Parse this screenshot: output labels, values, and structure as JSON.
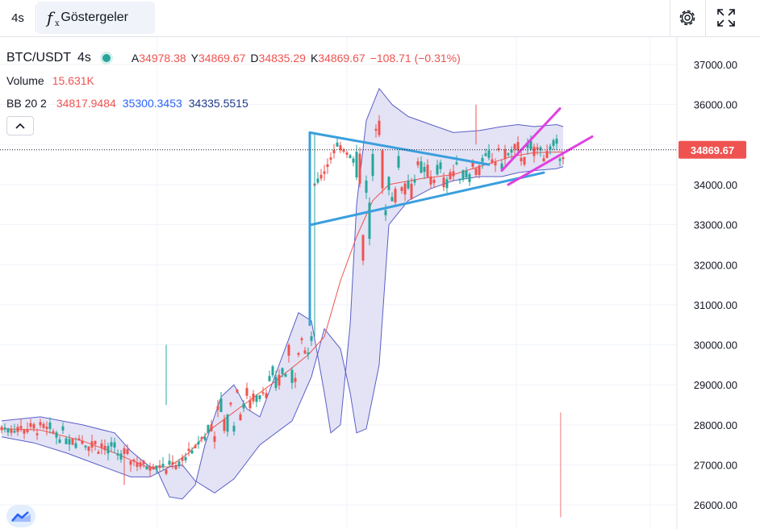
{
  "toolbar": {
    "interval": "4s",
    "indicators_label": "Göstergeler",
    "icons": [
      "fx-icon",
      "gear-icon",
      "expand-icon"
    ]
  },
  "legend": {
    "symbol": "BTC/USDT",
    "interval": "4s",
    "ohlc": [
      {
        "label": "A",
        "value": "34978.38"
      },
      {
        "label": "Y",
        "value": "34869.67"
      },
      {
        "label": "D",
        "value": "34835.29"
      },
      {
        "label": "K",
        "value": "34869.67"
      }
    ],
    "change": "−108.71 (−0.31%)",
    "volume_label": "Volume",
    "volume_value": "15.631K",
    "bb_label": "BB 20 2",
    "bb_basis": "34817.9484",
    "bb_upper": "35300.3453",
    "bb_lower": "34335.5515"
  },
  "colors": {
    "up": "#26a69a",
    "down": "#ef5350",
    "bb_fill": "#e3e3f5",
    "bb_band": "#5b5fc7",
    "basis": "#ef5350",
    "triangle": "#3a9fdd",
    "channel": "#e040e0",
    "price_tag": "#ef5350"
  },
  "chart_data": {
    "type": "line",
    "title": "BTC/USDT · 4s",
    "ylim": [
      25700,
      37500
    ],
    "y_ticks": [
      "37000.00",
      "36000.00",
      "35000.00",
      "34000.00",
      "33000.00",
      "32000.00",
      "31000.00",
      "30000.00",
      "29000.00",
      "28000.00",
      "27000.00",
      "26000.00"
    ],
    "current_price": "34869.67",
    "n_bars": 175,
    "bb_upper": [
      [
        0,
        28100
      ],
      [
        12,
        28200
      ],
      [
        25,
        28000
      ],
      [
        35,
        27800
      ],
      [
        40,
        27350
      ],
      [
        46,
        26950
      ],
      [
        48,
        26900
      ],
      [
        52,
        26200
      ],
      [
        56,
        26150
      ],
      [
        60,
        26500
      ],
      [
        63,
        27500
      ],
      [
        68,
        28700
      ],
      [
        72,
        29000
      ],
      [
        76,
        28400
      ],
      [
        80,
        28200
      ],
      [
        86,
        29500
      ],
      [
        92,
        30800
      ],
      [
        96,
        30600
      ],
      [
        100,
        28800
      ],
      [
        102,
        27800
      ],
      [
        105,
        28000
      ],
      [
        108,
        30500
      ],
      [
        110,
        33500
      ],
      [
        113,
        35600
      ],
      [
        117,
        36400
      ],
      [
        121,
        36000
      ],
      [
        126,
        35700
      ],
      [
        133,
        35500
      ],
      [
        140,
        35300
      ],
      [
        148,
        35350
      ],
      [
        155,
        35450
      ],
      [
        160,
        35500
      ],
      [
        165,
        35450
      ],
      [
        172,
        35500
      ],
      [
        174,
        35450
      ]
    ],
    "bb_lower": [
      [
        0,
        27700
      ],
      [
        10,
        27550
      ],
      [
        20,
        27300
      ],
      [
        30,
        27000
      ],
      [
        40,
        26700
      ],
      [
        46,
        26700
      ],
      [
        52,
        26950
      ],
      [
        56,
        27000
      ],
      [
        60,
        26600
      ],
      [
        66,
        26300
      ],
      [
        72,
        26650
      ],
      [
        80,
        27500
      ],
      [
        90,
        28100
      ],
      [
        96,
        29200
      ],
      [
        98,
        29800
      ],
      [
        100,
        30400
      ],
      [
        105,
        29900
      ],
      [
        108,
        28800
      ],
      [
        110,
        27800
      ],
      [
        113,
        27900
      ],
      [
        117,
        29500
      ],
      [
        120,
        33000
      ],
      [
        126,
        33600
      ],
      [
        133,
        33900
      ],
      [
        140,
        34100
      ],
      [
        148,
        34200
      ],
      [
        155,
        34200
      ],
      [
        160,
        34300
      ],
      [
        165,
        34350
      ],
      [
        172,
        34400
      ],
      [
        174,
        34450
      ]
    ],
    "basis": [
      [
        0,
        27900
      ],
      [
        12,
        27870
      ],
      [
        25,
        27600
      ],
      [
        35,
        27300
      ],
      [
        45,
        26950
      ],
      [
        52,
        26950
      ],
      [
        58,
        27300
      ],
      [
        65,
        27900
      ],
      [
        75,
        28500
      ],
      [
        85,
        29100
      ],
      [
        95,
        29750
      ],
      [
        100,
        30200
      ],
      [
        105,
        31600
      ],
      [
        110,
        32700
      ],
      [
        115,
        33600
      ],
      [
        120,
        34000
      ],
      [
        130,
        34150
      ],
      [
        140,
        34250
      ],
      [
        150,
        34500
      ],
      [
        158,
        34700
      ],
      [
        165,
        34800
      ],
      [
        174,
        34817
      ]
    ],
    "triangle_upper": [
      [
        95.5,
        35300
      ],
      [
        151,
        34500
      ]
    ],
    "triangle_lower": [
      [
        96,
        33000
      ],
      [
        168,
        34300
      ]
    ],
    "triangle_vertical": [
      [
        95.5,
        30500
      ],
      [
        95.5,
        35300
      ]
    ],
    "channel_upper": [
      [
        155,
        34350
      ],
      [
        173,
        35900
      ]
    ],
    "channel_lower": [
      [
        157,
        34000
      ],
      [
        183,
        35200
      ]
    ],
    "volume_spike": [
      [
        173.2,
        28300
      ],
      [
        173.2,
        25700
      ]
    ]
  }
}
